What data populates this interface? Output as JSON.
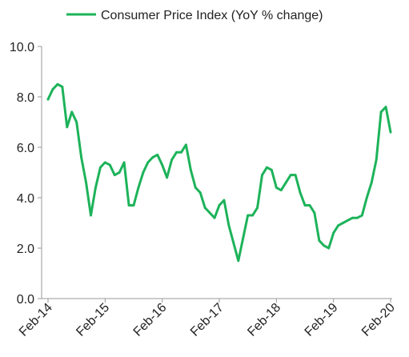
{
  "chart_data": {
    "type": "line",
    "title": "",
    "xlabel": "",
    "ylabel": "",
    "ylim": [
      0,
      10
    ],
    "yticks": [
      "0.0",
      "2.0",
      "4.0",
      "6.0",
      "8.0",
      "10.0"
    ],
    "xticks": [
      "Feb-14",
      "Feb-15",
      "Feb-16",
      "Feb-17",
      "Feb-18",
      "Feb-19",
      "Feb-20"
    ],
    "legend_position": "top-center",
    "grid": false,
    "series": [
      {
        "name": "Consumer Price Index (YoY % change)",
        "color": "#1db35a",
        "x": [
          "2014-02",
          "2014-03",
          "2014-04",
          "2014-05",
          "2014-06",
          "2014-07",
          "2014-08",
          "2014-09",
          "2014-10",
          "2014-11",
          "2014-12",
          "2015-01",
          "2015-02",
          "2015-03",
          "2015-04",
          "2015-05",
          "2015-06",
          "2015-07",
          "2015-08",
          "2015-09",
          "2015-10",
          "2015-11",
          "2015-12",
          "2016-01",
          "2016-02",
          "2016-03",
          "2016-04",
          "2016-05",
          "2016-06",
          "2016-07",
          "2016-08",
          "2016-09",
          "2016-10",
          "2016-11",
          "2016-12",
          "2017-01",
          "2017-02",
          "2017-03",
          "2017-04",
          "2017-05",
          "2017-06",
          "2017-07",
          "2017-08",
          "2017-09",
          "2017-10",
          "2017-11",
          "2017-12",
          "2018-01",
          "2018-02",
          "2018-03",
          "2018-04",
          "2018-05",
          "2018-06",
          "2018-07",
          "2018-08",
          "2018-09",
          "2018-10",
          "2018-11",
          "2018-12",
          "2019-01",
          "2019-02",
          "2019-03",
          "2019-04",
          "2019-05",
          "2019-06",
          "2019-07",
          "2019-08",
          "2019-09",
          "2019-10",
          "2019-11",
          "2019-12",
          "2020-01",
          "2020-02"
        ],
        "values": [
          7.9,
          8.3,
          8.5,
          8.4,
          6.8,
          7.4,
          7.0,
          5.6,
          4.6,
          3.3,
          4.4,
          5.2,
          5.4,
          5.3,
          4.9,
          5.0,
          5.4,
          3.7,
          3.7,
          4.4,
          5.0,
          5.4,
          5.6,
          5.7,
          5.3,
          4.8,
          5.5,
          5.8,
          5.8,
          6.1,
          5.1,
          4.4,
          4.2,
          3.6,
          3.4,
          3.2,
          3.7,
          3.9,
          2.9,
          2.2,
          1.5,
          2.4,
          3.3,
          3.3,
          3.6,
          4.9,
          5.2,
          5.1,
          4.4,
          4.3,
          4.6,
          4.9,
          4.9,
          4.2,
          3.7,
          3.7,
          3.4,
          2.3,
          2.1,
          2.0,
          2.6,
          2.9,
          3.0,
          3.1,
          3.2,
          3.2,
          3.3,
          4.0,
          4.6,
          5.5,
          7.4,
          7.6,
          6.6
        ]
      }
    ]
  }
}
